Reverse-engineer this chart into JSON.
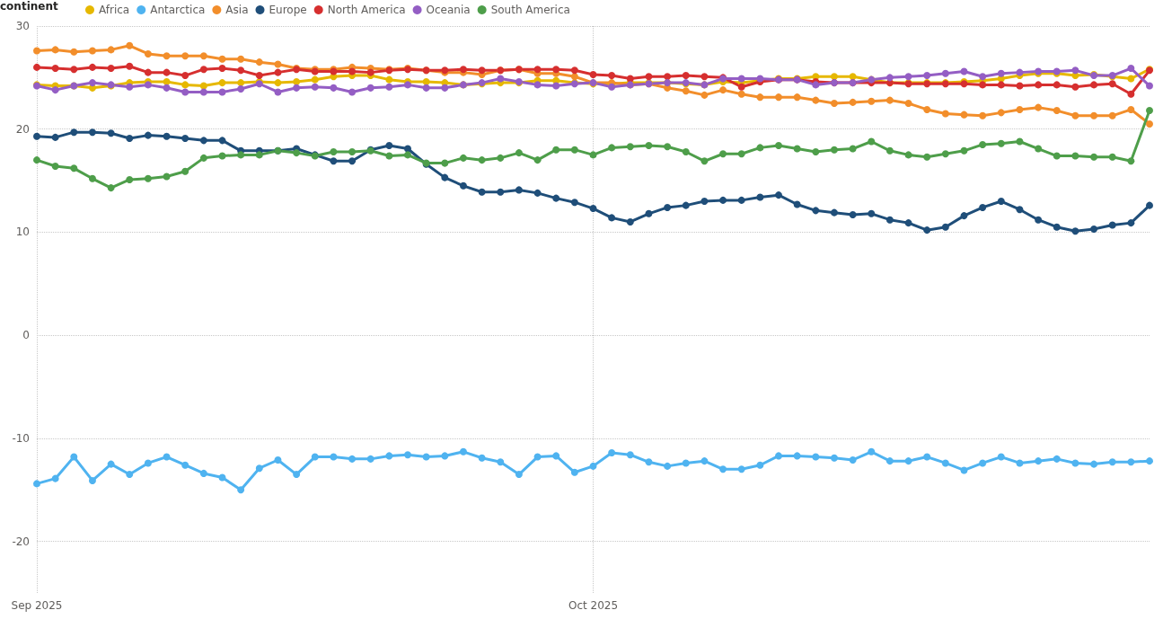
{
  "chart_data": {
    "type": "line",
    "legend_title": "continent",
    "legend": "top left",
    "grid": true,
    "marker": "circle",
    "line_style": "solid",
    "x": [
      "2025-09-01",
      "2025-09-02",
      "2025-09-03",
      "2025-09-04",
      "2025-09-05",
      "2025-09-06",
      "2025-09-07",
      "2025-09-08",
      "2025-09-09",
      "2025-09-10",
      "2025-09-11",
      "2025-09-12",
      "2025-09-13",
      "2025-09-14",
      "2025-09-15",
      "2025-09-16",
      "2025-09-17",
      "2025-09-18",
      "2025-09-19",
      "2025-09-20",
      "2025-09-21",
      "2025-09-22",
      "2025-09-23",
      "2025-09-24",
      "2025-09-25",
      "2025-09-26",
      "2025-09-27",
      "2025-09-28",
      "2025-09-29",
      "2025-09-30",
      "2025-10-01",
      "2025-10-02",
      "2025-10-03",
      "2025-10-04",
      "2025-10-05",
      "2025-10-06",
      "2025-10-07",
      "2025-10-08",
      "2025-10-09",
      "2025-10-10",
      "2025-10-11",
      "2025-10-12",
      "2025-10-13",
      "2025-10-14",
      "2025-10-15",
      "2025-10-16",
      "2025-10-17",
      "2025-10-18",
      "2025-10-19",
      "2025-10-20",
      "2025-10-21",
      "2025-10-22",
      "2025-10-23",
      "2025-10-24",
      "2025-10-25",
      "2025-10-26",
      "2025-10-27",
      "2025-10-28",
      "2025-10-29",
      "2025-10-30",
      "2025-10-31"
    ],
    "xlim": [
      "2025-09-01",
      "2025-10-31"
    ],
    "xticks": [
      {
        "value": "2025-09-01",
        "label": "Sep 2025"
      },
      {
        "value": "2025-10-01",
        "label": "Oct 2025"
      }
    ],
    "ylim": [
      -25,
      30
    ],
    "yticks": [
      -20,
      -10,
      0,
      10,
      20,
      30
    ],
    "series": [
      {
        "name": "Africa",
        "color": "#e6b800",
        "values": [
          24.3,
          24.2,
          24.2,
          24.0,
          24.2,
          24.5,
          24.6,
          24.6,
          24.3,
          24.2,
          24.5,
          24.5,
          24.6,
          24.5,
          24.6,
          24.8,
          25.1,
          25.2,
          25.2,
          24.8,
          24.6,
          24.6,
          24.5,
          24.3,
          24.4,
          24.5,
          24.5,
          24.7,
          24.7,
          24.5,
          24.4,
          24.4,
          24.5,
          24.5,
          24.5,
          24.4,
          24.3,
          24.6,
          24.5,
          24.7,
          24.9,
          24.9,
          25.1,
          25.1,
          25.1,
          24.8,
          24.5,
          24.5,
          24.5,
          24.5,
          24.6,
          24.7,
          24.9,
          25.2,
          25.4,
          25.4,
          25.2,
          25.3,
          25.1,
          24.9,
          25.8
        ]
      },
      {
        "name": "Antarctica",
        "color": "#4fb3f0",
        "values": [
          -14.4,
          -13.9,
          -11.8,
          -14.1,
          -12.5,
          -13.5,
          -12.4,
          -11.8,
          -12.6,
          -13.4,
          -13.8,
          -15.0,
          -12.9,
          -12.1,
          -13.5,
          -11.8,
          -11.8,
          -12.0,
          -12.0,
          -11.7,
          -11.6,
          -11.8,
          -11.7,
          -11.3,
          -11.9,
          -12.3,
          -13.5,
          -11.8,
          -11.7,
          -13.3,
          -12.7,
          -11.4,
          -11.6,
          -12.3,
          -12.7,
          -12.4,
          -12.2,
          -13.0,
          -13.0,
          -12.6,
          -11.7,
          -11.7,
          -11.8,
          -11.9,
          -12.1,
          -11.3,
          -12.2,
          -12.2,
          -11.8,
          -12.4,
          -13.1,
          -12.4,
          -11.8,
          -12.4,
          -12.2,
          -12.0,
          -12.4,
          -12.5,
          -12.3,
          -12.3,
          -12.2
        ]
      },
      {
        "name": "Asia",
        "color": "#f28e2b",
        "values": [
          27.6,
          27.7,
          27.5,
          27.6,
          27.7,
          28.1,
          27.3,
          27.1,
          27.1,
          27.1,
          26.8,
          26.8,
          26.5,
          26.3,
          25.9,
          25.8,
          25.8,
          26.0,
          25.9,
          25.8,
          25.9,
          25.7,
          25.5,
          25.5,
          25.3,
          25.7,
          25.8,
          25.4,
          25.4,
          25.1,
          24.5,
          24.5,
          24.3,
          24.4,
          24.0,
          23.7,
          23.3,
          23.8,
          23.4,
          23.1,
          23.1,
          23.1,
          22.8,
          22.5,
          22.6,
          22.7,
          22.8,
          22.5,
          21.9,
          21.5,
          21.4,
          21.3,
          21.6,
          21.9,
          22.1,
          21.8,
          21.3,
          21.3,
          21.3,
          21.9,
          20.5
        ]
      },
      {
        "name": "Europe",
        "color": "#1f4e79",
        "values": [
          19.3,
          19.2,
          19.7,
          19.7,
          19.6,
          19.1,
          19.4,
          19.3,
          19.1,
          18.9,
          18.9,
          17.9,
          17.9,
          17.9,
          18.1,
          17.5,
          16.9,
          16.9,
          18.0,
          18.4,
          18.1,
          16.6,
          15.3,
          14.5,
          13.9,
          13.9,
          14.1,
          13.8,
          13.3,
          12.9,
          12.3,
          11.4,
          11.0,
          11.8,
          12.4,
          12.6,
          13.0,
          13.1,
          13.1,
          13.4,
          13.6,
          12.7,
          12.1,
          11.9,
          11.7,
          11.8,
          11.2,
          10.9,
          10.2,
          10.5,
          11.6,
          12.4,
          13.0,
          12.2,
          11.2,
          10.5,
          10.1,
          10.3,
          10.7,
          10.9,
          12.6
        ]
      },
      {
        "name": "North America",
        "color": "#d62f2f",
        "values": [
          26.0,
          25.9,
          25.8,
          26.0,
          25.9,
          26.1,
          25.5,
          25.5,
          25.2,
          25.8,
          25.9,
          25.7,
          25.2,
          25.5,
          25.8,
          25.6,
          25.6,
          25.6,
          25.5,
          25.7,
          25.8,
          25.7,
          25.7,
          25.8,
          25.7,
          25.7,
          25.8,
          25.8,
          25.8,
          25.7,
          25.3,
          25.2,
          24.9,
          25.1,
          25.1,
          25.2,
          25.1,
          25.0,
          24.1,
          24.6,
          24.8,
          24.8,
          24.6,
          24.5,
          24.5,
          24.5,
          24.5,
          24.4,
          24.4,
          24.4,
          24.4,
          24.3,
          24.3,
          24.2,
          24.3,
          24.3,
          24.1,
          24.3,
          24.4,
          23.4,
          25.7
        ]
      },
      {
        "name": "Oceania",
        "color": "#945ec4",
        "values": [
          24.2,
          23.8,
          24.2,
          24.5,
          24.3,
          24.1,
          24.3,
          24.0,
          23.6,
          23.6,
          23.6,
          23.9,
          24.4,
          23.6,
          24.0,
          24.1,
          24.0,
          23.6,
          24.0,
          24.1,
          24.3,
          24.0,
          24.0,
          24.3,
          24.5,
          24.9,
          24.6,
          24.3,
          24.2,
          24.4,
          24.5,
          24.1,
          24.3,
          24.4,
          24.5,
          24.5,
          24.3,
          24.9,
          24.9,
          24.9,
          24.8,
          24.8,
          24.3,
          24.5,
          24.5,
          24.8,
          25.0,
          25.1,
          25.2,
          25.4,
          25.6,
          25.1,
          25.4,
          25.5,
          25.6,
          25.6,
          25.7,
          25.2,
          25.2,
          25.9,
          24.2
        ]
      },
      {
        "name": "South America",
        "color": "#4e9e4a",
        "values": [
          17.0,
          16.4,
          16.2,
          15.2,
          14.3,
          15.1,
          15.2,
          15.4,
          15.9,
          17.2,
          17.4,
          17.5,
          17.5,
          17.9,
          17.7,
          17.4,
          17.8,
          17.8,
          17.9,
          17.4,
          17.5,
          16.7,
          16.7,
          17.2,
          17.0,
          17.2,
          17.7,
          17.0,
          18.0,
          18.0,
          17.5,
          18.2,
          18.3,
          18.4,
          18.3,
          17.8,
          16.9,
          17.6,
          17.6,
          18.2,
          18.4,
          18.1,
          17.8,
          18.0,
          18.1,
          18.8,
          17.9,
          17.5,
          17.3,
          17.6,
          17.9,
          18.5,
          18.6,
          18.8,
          18.1,
          17.4,
          17.4,
          17.3,
          17.3,
          16.9,
          21.8
        ]
      }
    ]
  }
}
